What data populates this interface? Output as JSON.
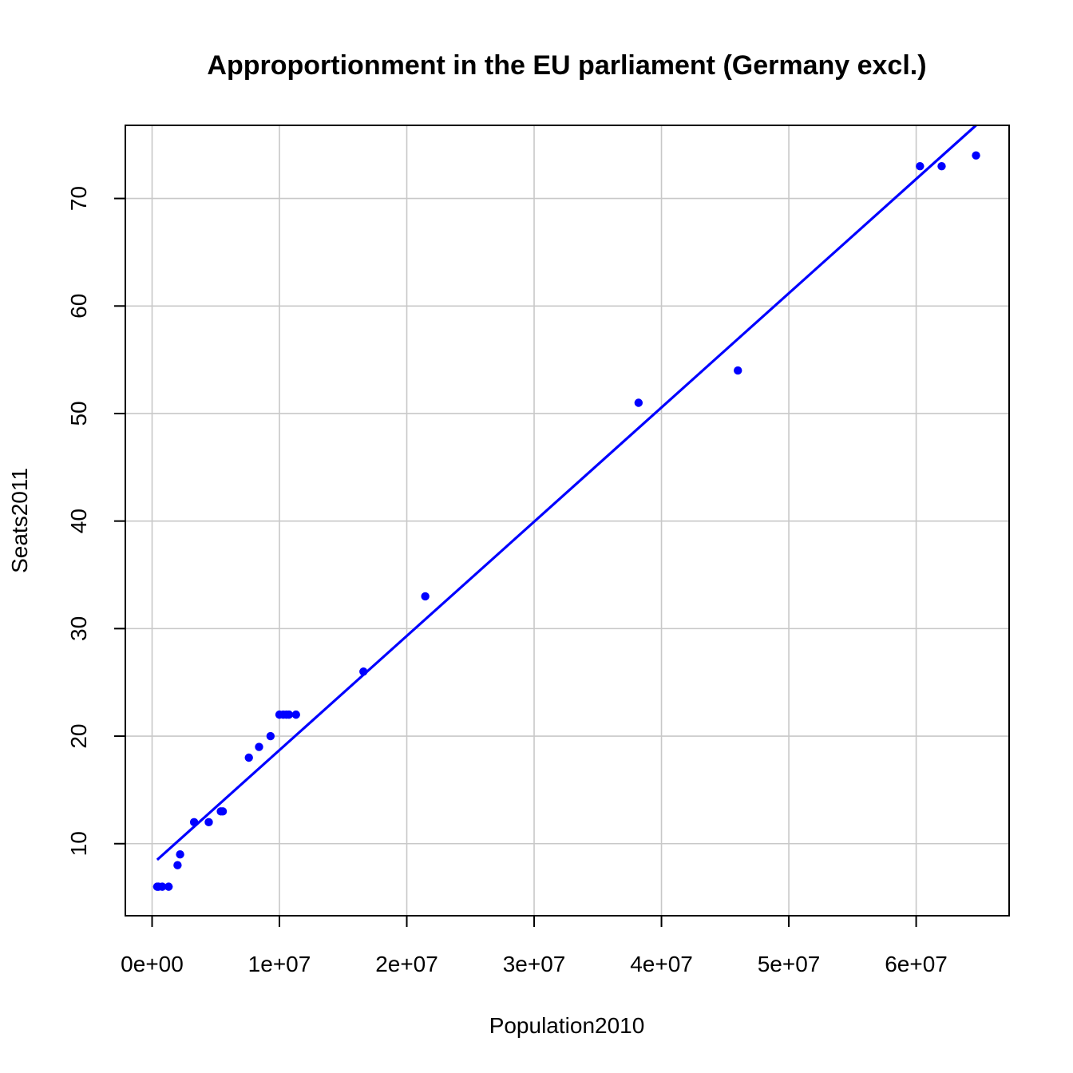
{
  "chart_data": {
    "type": "scatter",
    "title": "Approportionment in the EU parliament (Germany excl.)",
    "xlabel": "Population2010",
    "ylabel": "Seats2011",
    "xlim": [
      -2100000,
      67300000
    ],
    "ylim": [
      3.3,
      76.8
    ],
    "xticks": [
      0,
      10000000,
      20000000,
      30000000,
      40000000,
      50000000,
      60000000
    ],
    "xtick_labels": [
      "0e+00",
      "1e+07",
      "2e+07",
      "3e+07",
      "4e+07",
      "5e+07",
      "6e+07"
    ],
    "yticks": [
      10,
      20,
      30,
      40,
      50,
      60,
      70
    ],
    "ytick_labels": [
      "10",
      "20",
      "30",
      "40",
      "50",
      "60",
      "70"
    ],
    "grid": true,
    "point_color": "#0000ff",
    "line_color": "#0000ff",
    "points": [
      {
        "x": 400000,
        "y": 6
      },
      {
        "x": 500000,
        "y": 6
      },
      {
        "x": 800000,
        "y": 6
      },
      {
        "x": 1300000,
        "y": 6
      },
      {
        "x": 2000000,
        "y": 8
      },
      {
        "x": 2200000,
        "y": 9
      },
      {
        "x": 3300000,
        "y": 12
      },
      {
        "x": 4450000,
        "y": 12
      },
      {
        "x": 5400000,
        "y": 13
      },
      {
        "x": 5550000,
        "y": 13
      },
      {
        "x": 7600000,
        "y": 18
      },
      {
        "x": 8400000,
        "y": 19
      },
      {
        "x": 9300000,
        "y": 20
      },
      {
        "x": 10000000,
        "y": 22
      },
      {
        "x": 10300000,
        "y": 22
      },
      {
        "x": 10550000,
        "y": 22
      },
      {
        "x": 10750000,
        "y": 22
      },
      {
        "x": 11300000,
        "y": 22
      },
      {
        "x": 16600000,
        "y": 26
      },
      {
        "x": 21450000,
        "y": 33
      },
      {
        "x": 38200000,
        "y": 51
      },
      {
        "x": 46000000,
        "y": 54
      },
      {
        "x": 60300000,
        "y": 73
      },
      {
        "x": 62000000,
        "y": 73
      },
      {
        "x": 64700000,
        "y": 74
      }
    ],
    "fit_line": {
      "x": [
        400000,
        64700000
      ],
      "y": [
        8.5,
        76.8
      ]
    }
  }
}
